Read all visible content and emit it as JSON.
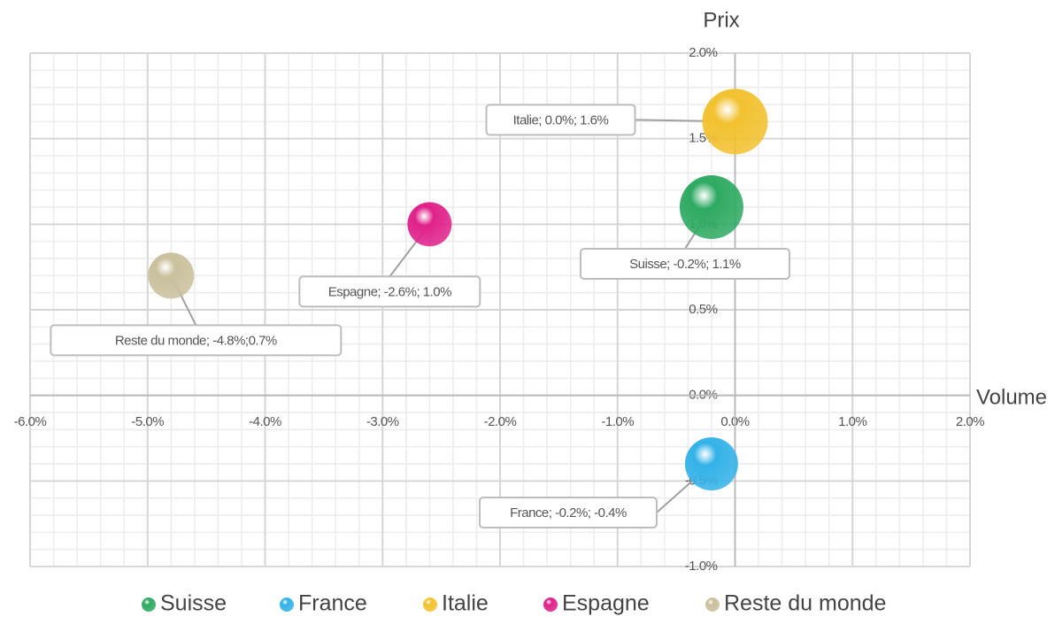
{
  "chart_data": {
    "type": "bubble",
    "y_axis_title": "Prix",
    "x_axis_title": "Volume",
    "xlim": [
      -6,
      2
    ],
    "ylim": [
      -1,
      2
    ],
    "xticks": [
      {
        "value": -6,
        "label": "-6.0%"
      },
      {
        "value": -5,
        "label": "-5.0%"
      },
      {
        "value": -4,
        "label": "-4.0%"
      },
      {
        "value": -3,
        "label": "-3.0%"
      },
      {
        "value": -2,
        "label": "-2.0%"
      },
      {
        "value": -1,
        "label": "-1.0%"
      },
      {
        "value": 0,
        "label": "0.0%"
      },
      {
        "value": 1,
        "label": "1.0%"
      },
      {
        "value": 2,
        "label": "2.0%"
      }
    ],
    "yticks": [
      {
        "value": -1,
        "label": "-1.0%"
      },
      {
        "value": -0.5,
        "label": "-0.5%"
      },
      {
        "value": 0,
        "label": "0.0%"
      },
      {
        "value": 0.5,
        "label": "0.5%"
      },
      {
        "value": 1,
        "label": "1.0%"
      },
      {
        "value": 1.5,
        "label": "1.5%"
      },
      {
        "value": 2,
        "label": "2.0%"
      }
    ],
    "grid": true,
    "minor_grid": 5,
    "legend": "bottom",
    "series": [
      {
        "name": "Suisse",
        "color": "#2eaa62",
        "x": [
          -0.2
        ],
        "y": [
          1.1
        ],
        "size": [
          36
        ],
        "value_labels": [
          "Suisse; -0.2%; 1.1%"
        ]
      },
      {
        "name": "France",
        "color": "#33b2e8",
        "x": [
          -0.2
        ],
        "y": [
          -0.4
        ],
        "size": [
          30
        ],
        "value_labels": [
          "France; -0.2%; -0.4%"
        ]
      },
      {
        "name": "Italie",
        "color": "#f2c12e",
        "x": [
          0.0
        ],
        "y": [
          1.6
        ],
        "size": [
          37
        ],
        "value_labels": [
          "Italie; 0.0%; 1.6%"
        ]
      },
      {
        "name": "Espagne",
        "color": "#e0218a",
        "x": [
          -2.6
        ],
        "y": [
          1.0
        ],
        "size": [
          25
        ],
        "value_labels": [
          "Espagne; -2.6%; 1.0%"
        ]
      },
      {
        "name": "Reste du monde",
        "color": "#c9c09c",
        "x": [
          -4.8
        ],
        "y": [
          0.7
        ],
        "size": [
          26
        ],
        "value_labels": [
          "Reste du monde; -4.8%;0.7%"
        ]
      }
    ]
  }
}
